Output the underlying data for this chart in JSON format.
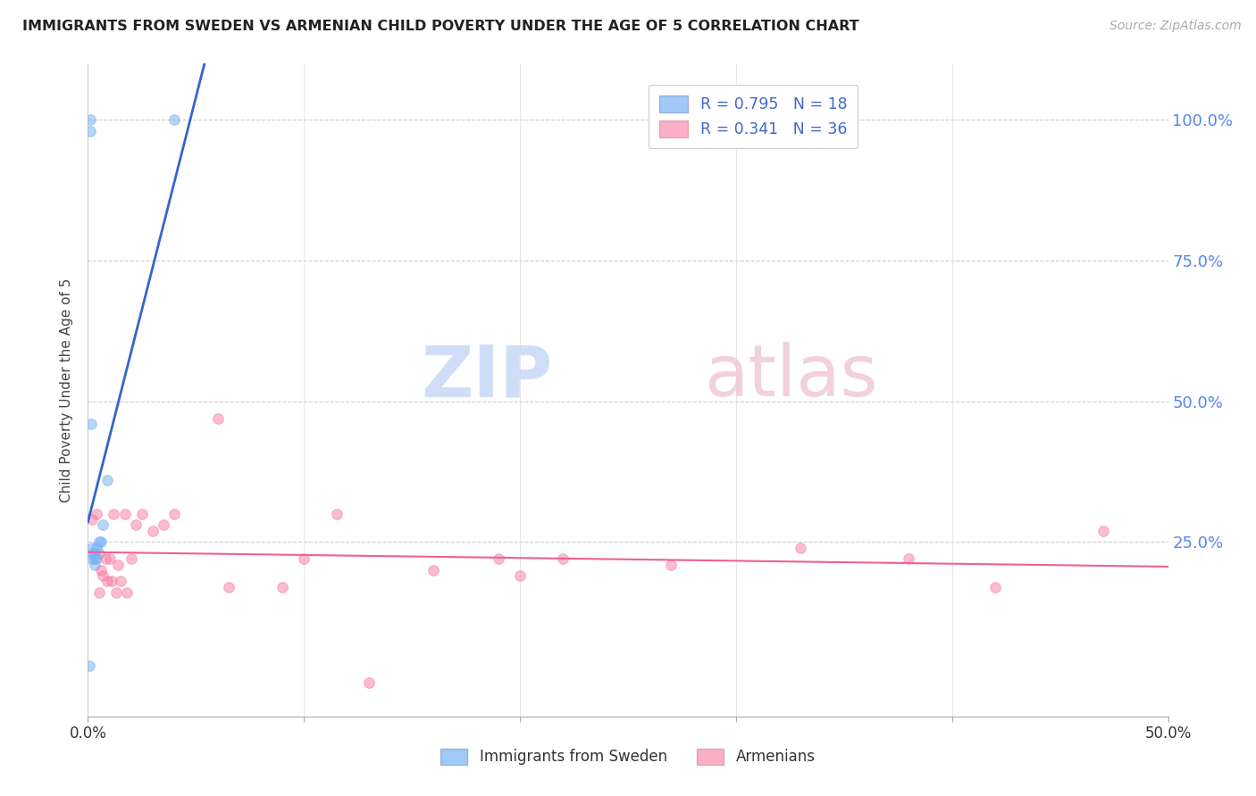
{
  "title": "IMMIGRANTS FROM SWEDEN VS ARMENIAN CHILD POVERTY UNDER THE AGE OF 5 CORRELATION CHART",
  "source": "Source: ZipAtlas.com",
  "ylabel": "Child Poverty Under the Age of 5",
  "ytick_labels": [
    "100.0%",
    "75.0%",
    "50.0%",
    "25.0%"
  ],
  "ytick_values": [
    1.0,
    0.75,
    0.5,
    0.25
  ],
  "xlim": [
    0.0,
    0.5
  ],
  "ylim": [
    -0.06,
    1.1
  ],
  "legend_r1": "0.795",
  "legend_n1": "18",
  "legend_r2": "0.341",
  "legend_n2": "36",
  "legend_label1": "Immigrants from Sweden",
  "legend_label2": "Armenians",
  "blue_color": "#7ab3f5",
  "pink_color": "#f87aa0",
  "blue_line_color": "#3366cc",
  "pink_line_color": "#f06090",
  "sweden_x": [
    0.0008,
    0.001,
    0.001,
    0.0015,
    0.002,
    0.002,
    0.0025,
    0.003,
    0.003,
    0.003,
    0.004,
    0.004,
    0.005,
    0.005,
    0.006,
    0.007,
    0.009,
    0.04
  ],
  "sweden_y": [
    0.03,
    0.98,
    1.0,
    0.46,
    0.22,
    0.24,
    0.23,
    0.22,
    0.21,
    0.23,
    0.24,
    0.22,
    0.23,
    0.25,
    0.25,
    0.28,
    0.36,
    1.0
  ],
  "armenian_x": [
    0.002,
    0.004,
    0.005,
    0.006,
    0.007,
    0.008,
    0.009,
    0.01,
    0.011,
    0.012,
    0.013,
    0.014,
    0.015,
    0.017,
    0.018,
    0.02,
    0.022,
    0.025,
    0.03,
    0.035,
    0.04,
    0.06,
    0.065,
    0.09,
    0.1,
    0.115,
    0.13,
    0.16,
    0.19,
    0.2,
    0.22,
    0.27,
    0.33,
    0.38,
    0.42,
    0.47
  ],
  "armenian_y": [
    0.29,
    0.3,
    0.16,
    0.2,
    0.19,
    0.22,
    0.18,
    0.22,
    0.18,
    0.3,
    0.16,
    0.21,
    0.18,
    0.3,
    0.16,
    0.22,
    0.28,
    0.3,
    0.27,
    0.28,
    0.3,
    0.47,
    0.17,
    0.17,
    0.22,
    0.3,
    0.0,
    0.2,
    0.22,
    0.19,
    0.22,
    0.21,
    0.24,
    0.22,
    0.17,
    0.27
  ],
  "background_color": "#ffffff",
  "scatter_size": 70,
  "grid_color": "#cccccc",
  "grid_style": "--"
}
